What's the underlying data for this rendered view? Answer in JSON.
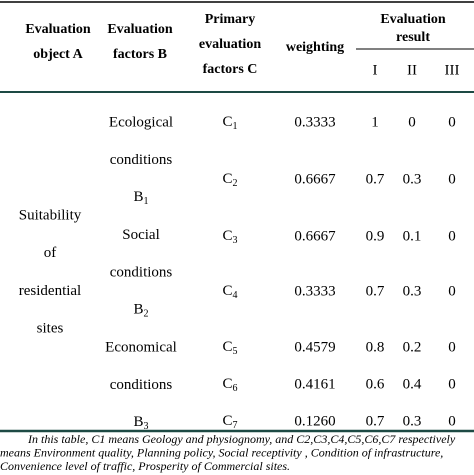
{
  "header": {
    "object": [
      "Evaluation",
      "object A"
    ],
    "factors_b": [
      "Evaluation",
      "factors B"
    ],
    "factors_c": [
      "Primary",
      "evaluation",
      "factors C"
    ],
    "weighting": "weighting",
    "result": [
      "Evaluation",
      "result"
    ],
    "levels": [
      "I",
      "II",
      "III"
    ]
  },
  "object_a": [
    "Suitability",
    "of",
    "residential",
    "sites"
  ],
  "factors_b": [
    {
      "lines": [
        "Ecological",
        "conditions"
      ],
      "label": "B",
      "sub": "1"
    },
    {
      "lines": [
        "Social",
        "conditions"
      ],
      "label": "B",
      "sub": "2"
    },
    {
      "lines": [
        "Economical",
        "conditions"
      ],
      "label": "B",
      "sub": "3"
    }
  ],
  "rows": [
    {
      "factor": "C",
      "sub": "1",
      "weighting": "0.3333",
      "results": [
        "1",
        "0",
        "0"
      ]
    },
    {
      "factor": "C",
      "sub": "2",
      "weighting": "0.6667",
      "results": [
        "0.7",
        "0.3",
        "0"
      ]
    },
    {
      "factor": "C",
      "sub": "3",
      "weighting": "0.6667",
      "results": [
        "0.9",
        "0.1",
        "0"
      ]
    },
    {
      "factor": "C",
      "sub": "4",
      "weighting": "0.3333",
      "results": [
        "0.7",
        "0.3",
        "0"
      ]
    },
    {
      "factor": "C",
      "sub": "5",
      "weighting": "0.4579",
      "results": [
        "0.8",
        "0.2",
        "0"
      ]
    },
    {
      "factor": "C",
      "sub": "6",
      "weighting": "0.4161",
      "results": [
        "0.6",
        "0.4",
        "0"
      ]
    },
    {
      "factor": "C",
      "sub": "7",
      "weighting": "0.1260",
      "results": [
        "0.7",
        "0.3",
        "0"
      ]
    }
  ],
  "footnote": [
    "In this table, C1 means Geology and physiognomy, and C2,C3,C4,C5,C6,C7 respectively",
    "means Environment quality, Planning policy, Social receptivity , Condition of infrastructure,",
    "Convenience level of traffic, Prosperity of Commercial sites."
  ]
}
